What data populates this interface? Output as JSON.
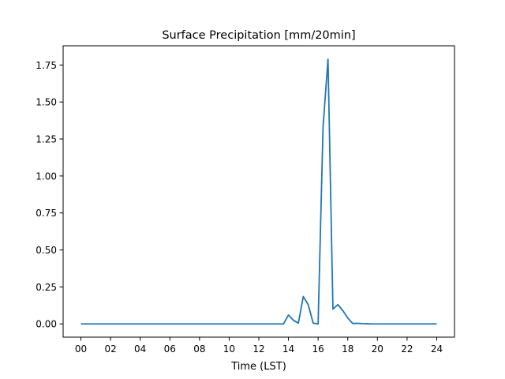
{
  "chart_data": {
    "type": "line",
    "title": "Surface Precipitation [mm/20min]",
    "xlabel": "Time (LST)",
    "ylabel": "",
    "xlim": [
      -1.2,
      25.2
    ],
    "ylim": [
      -0.0895,
      1.88
    ],
    "x_ticks": [
      {
        "value": 0,
        "label": "00"
      },
      {
        "value": 2,
        "label": "02"
      },
      {
        "value": 4,
        "label": "04"
      },
      {
        "value": 6,
        "label": "06"
      },
      {
        "value": 8,
        "label": "08"
      },
      {
        "value": 10,
        "label": "10"
      },
      {
        "value": 12,
        "label": "12"
      },
      {
        "value": 14,
        "label": "14"
      },
      {
        "value": 16,
        "label": "16"
      },
      {
        "value": 18,
        "label": "18"
      },
      {
        "value": 20,
        "label": "20"
      },
      {
        "value": 22,
        "label": "22"
      },
      {
        "value": 24,
        "label": "24"
      }
    ],
    "y_ticks": [
      {
        "value": 0.0,
        "label": "0.00"
      },
      {
        "value": 0.25,
        "label": "0.25"
      },
      {
        "value": 0.5,
        "label": "0.50"
      },
      {
        "value": 0.75,
        "label": "0.75"
      },
      {
        "value": 1.0,
        "label": "1.00"
      },
      {
        "value": 1.25,
        "label": "1.25"
      },
      {
        "value": 1.5,
        "label": "1.50"
      },
      {
        "value": 1.75,
        "label": "1.75"
      }
    ],
    "grid": false,
    "legend": "none",
    "color": "#1f77b4",
    "series": [
      {
        "x": [
          0,
          0.333,
          0.667,
          1,
          1.333,
          1.667,
          2,
          2.333,
          2.667,
          3,
          3.333,
          3.667,
          4,
          4.333,
          4.667,
          5,
          5.333,
          5.667,
          6,
          6.333,
          6.667,
          7,
          7.333,
          7.667,
          8,
          8.333,
          8.667,
          9,
          9.333,
          9.667,
          10,
          10.333,
          10.667,
          11,
          11.333,
          11.667,
          12,
          12.333,
          12.667,
          13,
          13.333,
          13.667,
          14,
          14.333,
          14.667,
          15,
          15.333,
          15.667,
          16,
          16.333,
          16.667,
          17,
          17.333,
          17.667,
          18,
          18.333,
          18.667,
          19,
          19.333,
          19.667,
          20,
          20.333,
          20.667,
          21,
          21.333,
          21.667,
          22,
          22.333,
          22.667,
          23,
          23.333,
          23.667,
          24
        ],
        "y": [
          0,
          0,
          0,
          0,
          0,
          0,
          0,
          0,
          0,
          0,
          0,
          0,
          0,
          0,
          0,
          0,
          0,
          0,
          0,
          0,
          0,
          0,
          0,
          0,
          0,
          0,
          0,
          0,
          0,
          0,
          0,
          0,
          0,
          0,
          0,
          0,
          0,
          0,
          0,
          0,
          0,
          0,
          0.06,
          0.025,
          0.005,
          0.185,
          0.13,
          0.005,
          0,
          1.33,
          1.79,
          0.1,
          0.13,
          0.09,
          0.04,
          0.003,
          0.004,
          0.002,
          0.001,
          0,
          0,
          0,
          0,
          0,
          0,
          0,
          0,
          0,
          0,
          0,
          0,
          0,
          0
        ]
      }
    ]
  }
}
